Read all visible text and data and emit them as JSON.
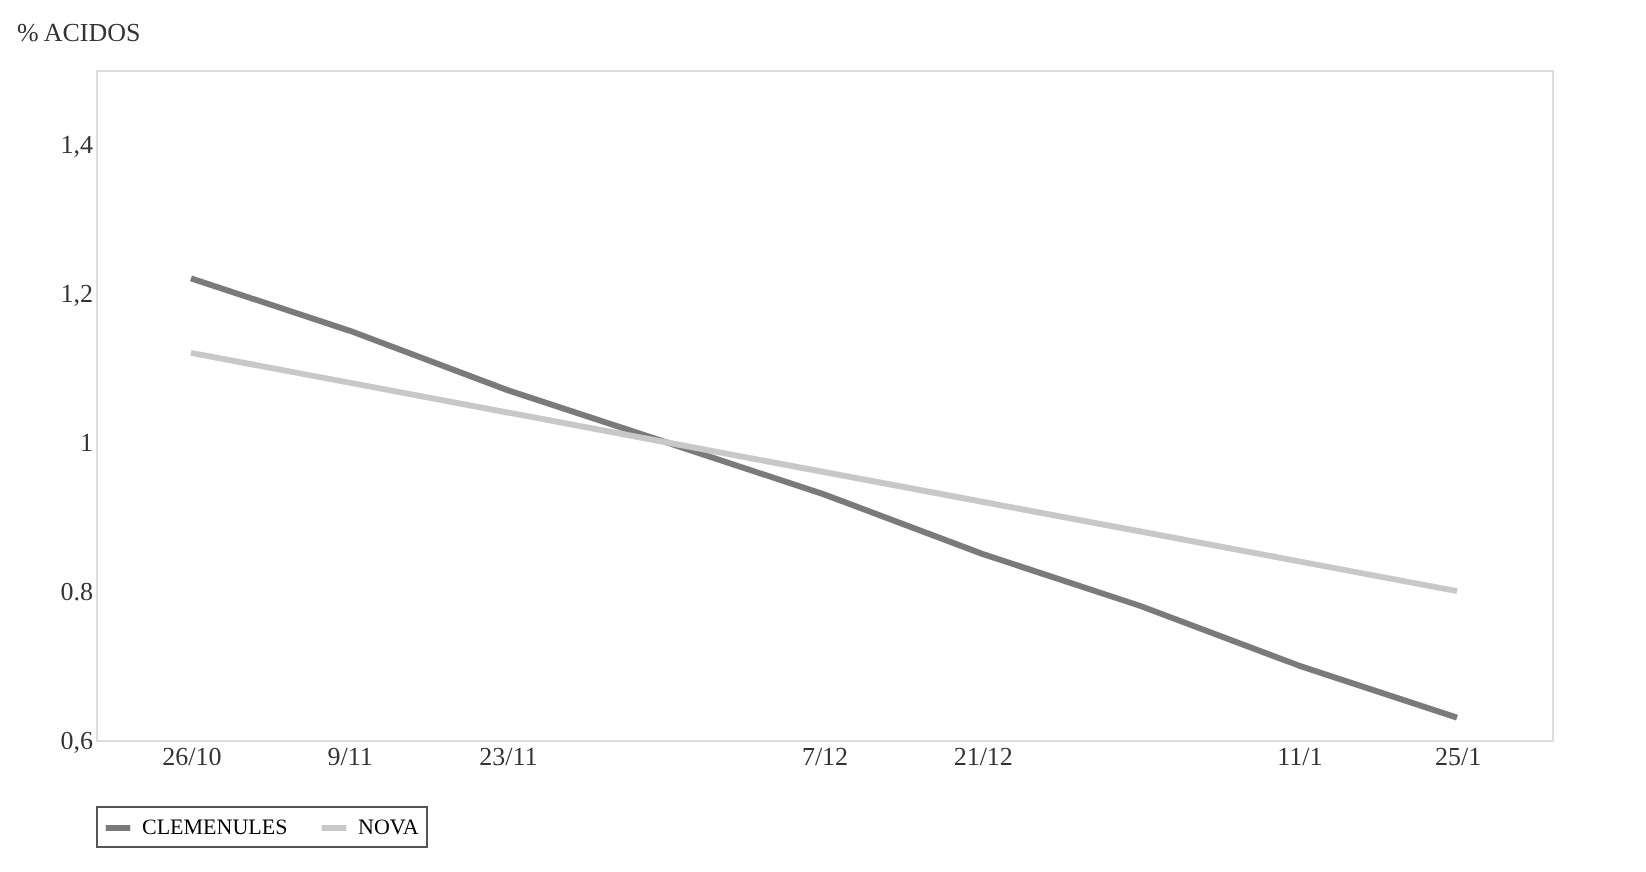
{
  "chart_data": {
    "type": "line",
    "ylabel": "% ACIDOS",
    "categories": [
      "26/10",
      "9/11",
      "23/11",
      null,
      "7/12",
      "21/12",
      null,
      "11/1",
      "25/1"
    ],
    "series": [
      {
        "name": "CLEMENULES",
        "color": "#7a7a7a",
        "values": [
          1.22,
          1.15,
          1.07,
          1.0,
          0.93,
          0.85,
          0.78,
          0.7,
          0.63
        ]
      },
      {
        "name": "NOVA",
        "color": "#c8c8c8",
        "values": [
          1.12,
          1.08,
          1.04,
          1.0,
          0.96,
          0.92,
          0.88,
          0.84,
          0.8
        ]
      }
    ],
    "ylim": [
      0.6,
      1.5
    ],
    "yticks": [
      {
        "value": 0.6,
        "label": "0,6"
      },
      {
        "value": 0.8,
        "label": "0.8"
      },
      1,
      {
        "value": 1.2,
        "label": "1,2"
      },
      {
        "value": 1.4,
        "label": "1,4"
      }
    ],
    "grid": false,
    "legend": "bottom",
    "marker": "none",
    "line_style": "solid"
  }
}
